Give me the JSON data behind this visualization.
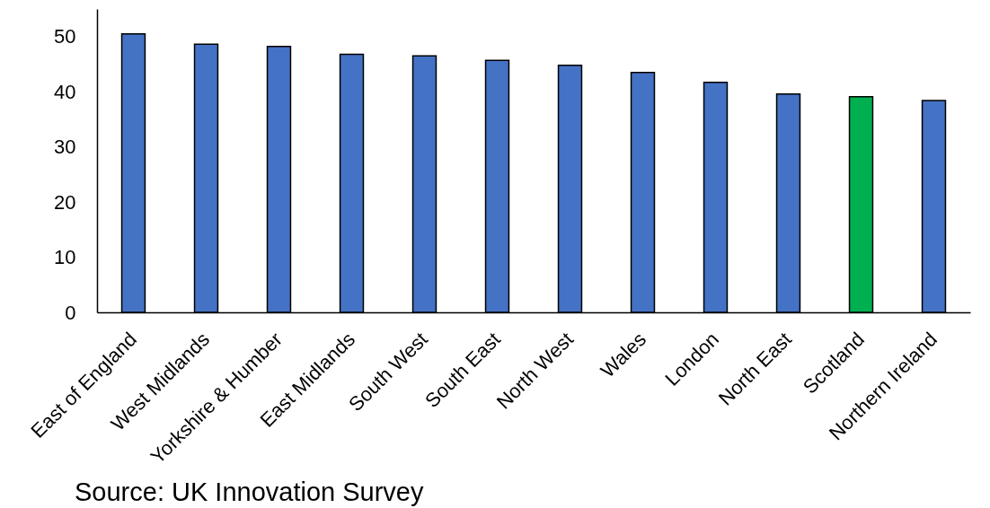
{
  "chart_data": {
    "type": "bar",
    "categories": [
      "East of England",
      "West Midlands",
      "Yorkshire & Humber",
      "East Midlands",
      "South West",
      "South East",
      "North West",
      "Wales",
      "London",
      "North East",
      "Scotland",
      "Northern Ireland"
    ],
    "values": [
      50.5,
      48.6,
      48.2,
      46.8,
      46.5,
      45.7,
      44.8,
      43.5,
      41.7,
      39.6,
      39.1,
      38.4
    ],
    "colors": [
      "#4472c4",
      "#4472c4",
      "#4472c4",
      "#4472c4",
      "#4472c4",
      "#4472c4",
      "#4472c4",
      "#4472c4",
      "#4472c4",
      "#4472c4",
      "#00b050",
      "#4472c4"
    ],
    "ylim": [
      0,
      55
    ],
    "yticks": [
      0,
      10,
      20,
      30,
      40,
      50
    ],
    "grid": false,
    "annotations": [
      "Source: UK Innovation Survey"
    ]
  }
}
